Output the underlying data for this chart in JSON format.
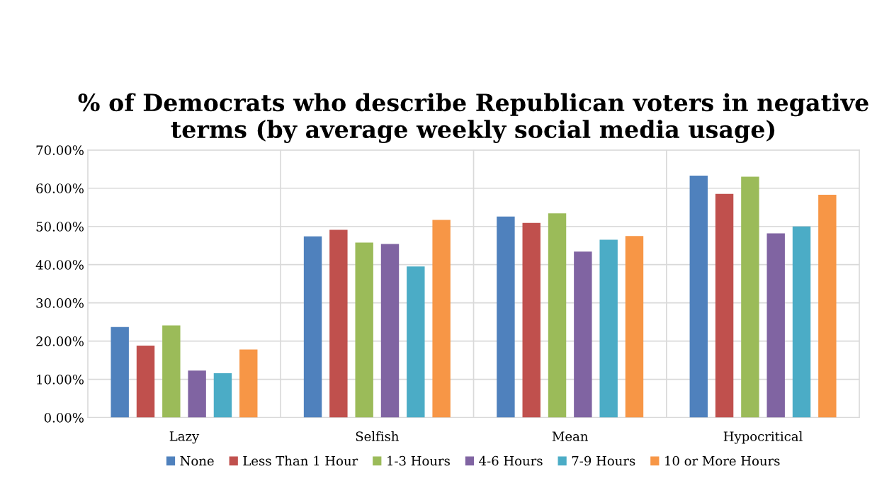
{
  "chart_data": {
    "type": "bar",
    "title": "% of Democrats who describe Republican voters in negative terms (by average weekly social media usage)",
    "categories": [
      "Lazy",
      "Selfish",
      "Mean",
      "Hypocritical"
    ],
    "series": [
      {
        "name": "None",
        "color": "#4f81bd",
        "values": [
          23.7,
          47.4,
          52.6,
          63.3
        ]
      },
      {
        "name": "Less Than 1 Hour",
        "color": "#c0504d",
        "values": [
          18.8,
          49.1,
          50.9,
          58.5
        ]
      },
      {
        "name": "1-3 Hours",
        "color": "#9bbb59",
        "values": [
          24.1,
          45.8,
          53.4,
          63.0
        ]
      },
      {
        "name": "4-6 Hours",
        "color": "#8064a2",
        "values": [
          12.3,
          45.4,
          43.4,
          48.2
        ]
      },
      {
        "name": "7-9 Hours",
        "color": "#4bacc6",
        "values": [
          11.6,
          39.5,
          46.5,
          50.0
        ]
      },
      {
        "name": "10 or More Hours",
        "color": "#f79646",
        "values": [
          17.8,
          51.7,
          47.5,
          58.3
        ]
      }
    ],
    "ylim": [
      0,
      70
    ],
    "yticks": [
      {
        "value": 0,
        "label": "0.00%"
      },
      {
        "value": 10,
        "label": "10.00%"
      },
      {
        "value": 20,
        "label": "20.00%"
      },
      {
        "value": 30,
        "label": "30.00%"
      },
      {
        "value": 40,
        "label": "40.00%"
      },
      {
        "value": 50,
        "label": "50.00%"
      },
      {
        "value": 60,
        "label": "60.00%"
      },
      {
        "value": 70,
        "label": "70.00%"
      }
    ],
    "grid": true,
    "legend": "bottom"
  }
}
